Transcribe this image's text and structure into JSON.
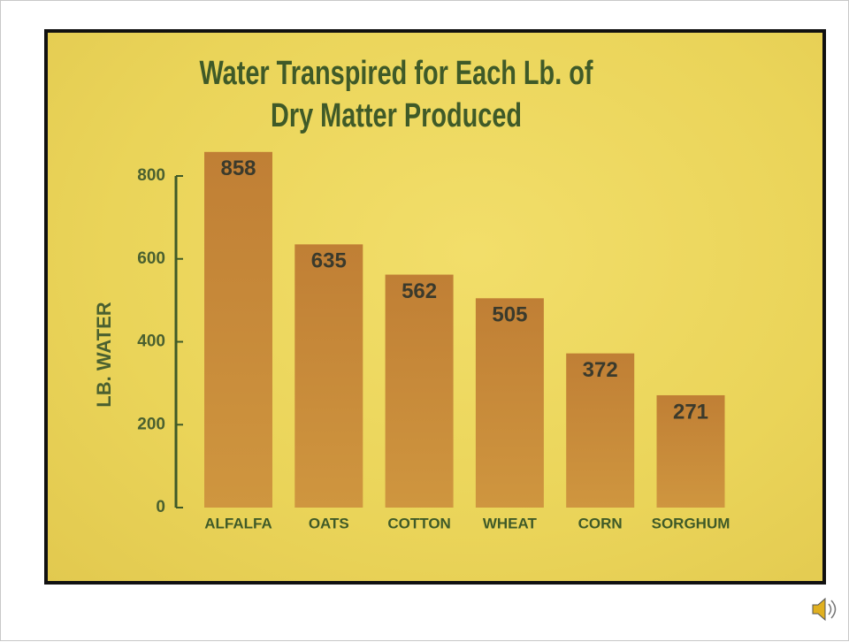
{
  "chart_data": {
    "type": "bar",
    "title": "Water Transpired for Each Lb. of Dry Matter Produced",
    "y_label": "LB. WATER",
    "categories": [
      "ALFALFA",
      "OATS",
      "COTTON",
      "WHEAT",
      "CORN",
      "SORGHUM"
    ],
    "values": [
      858,
      635,
      562,
      505,
      372,
      271
    ],
    "color": "#cf963f",
    "ylim": [
      0,
      800
    ],
    "yticks": [
      0,
      200,
      400,
      600,
      800
    ]
  }
}
